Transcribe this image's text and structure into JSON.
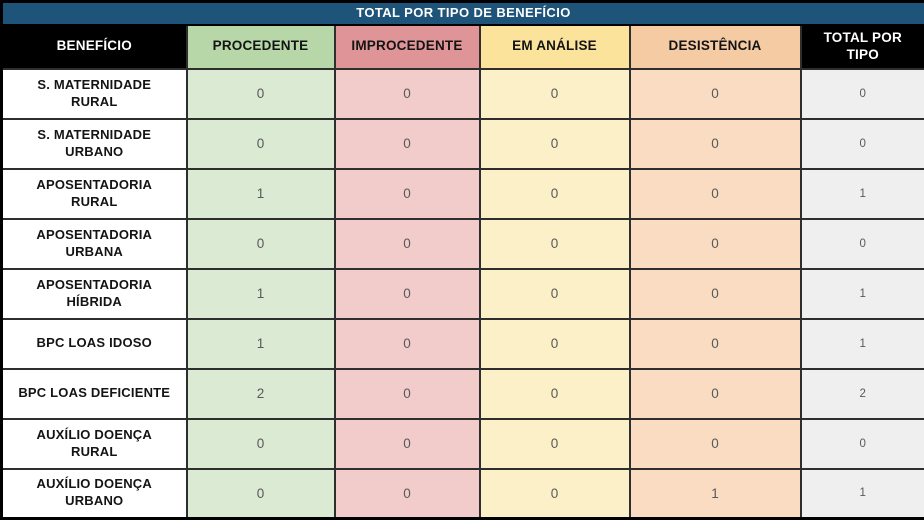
{
  "chart_data": {
    "type": "table",
    "title": "TOTAL POR TIPO DE BENEFÍCIO",
    "columns": [
      "BENEFÍCIO",
      "PROCEDENTE",
      "IMPROCEDENTE",
      "EM ANÁLISE",
      "DESISTÊNCIA",
      "TOTAL POR\nTIPO"
    ],
    "rows": [
      {
        "label": "S. MATERNIDADE\nRURAL",
        "values": [
          0,
          0,
          0,
          0,
          0
        ]
      },
      {
        "label": "S. MATERNIDADE\nURBANO",
        "values": [
          0,
          0,
          0,
          0,
          0
        ]
      },
      {
        "label": "APOSENTADORIA\nRURAL",
        "values": [
          1,
          0,
          0,
          0,
          1
        ]
      },
      {
        "label": "APOSENTADORIA\nURBANA",
        "values": [
          0,
          0,
          0,
          0,
          0
        ]
      },
      {
        "label": "APOSENTADORIA\nHÍBRIDA",
        "values": [
          1,
          0,
          0,
          0,
          1
        ]
      },
      {
        "label": "BPC LOAS IDOSO",
        "values": [
          1,
          0,
          0,
          0,
          1
        ]
      },
      {
        "label": "BPC LOAS DEFICIENTE",
        "values": [
          2,
          0,
          0,
          0,
          2
        ]
      },
      {
        "label": "AUXÍLIO DOENÇA\nRURAL",
        "values": [
          0,
          0,
          0,
          0,
          0
        ]
      },
      {
        "label": "AUXÍLIO DOENÇA\nURBANO",
        "values": [
          0,
          0,
          0,
          1,
          1
        ]
      }
    ]
  },
  "style": {
    "title_bg": "#1F547A",
    "title_fg": "#FFFFFF",
    "label_fg": "#141414",
    "value_fg": "#595959",
    "column_styles": [
      {
        "header_bg": "#000000",
        "header_fg": "#FFFFFF",
        "cell_bg": "#FFFFFF"
      },
      {
        "header_bg": "#B7D7A8",
        "header_fg": "#141414",
        "cell_bg": "#DBEAD3"
      },
      {
        "header_bg": "#DF9597",
        "header_fg": "#141414",
        "cell_bg": "#F2CBCB"
      },
      {
        "header_bg": "#FBE39B",
        "header_fg": "#141414",
        "cell_bg": "#FCF0C9"
      },
      {
        "header_bg": "#F5CBA4",
        "header_fg": "#141414",
        "cell_bg": "#F9DCC2"
      },
      {
        "header_bg": "#000000",
        "header_fg": "#FFFFFF",
        "cell_bg": "#EFEFEF"
      }
    ]
  }
}
